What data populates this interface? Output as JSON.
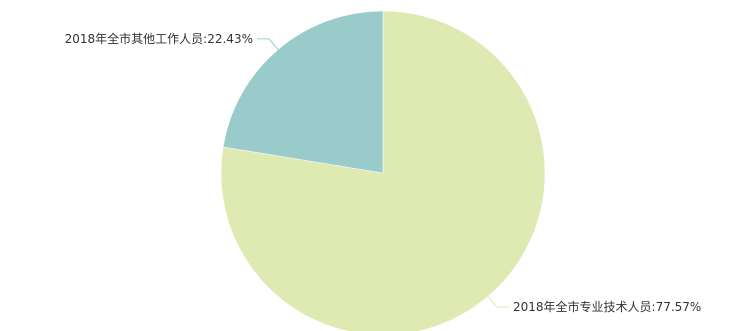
{
  "chart_data": {
    "type": "pie",
    "title": "",
    "start_angle": "top",
    "direction": "clockwise",
    "slices": [
      {
        "label": "2018年全市专业技术人员",
        "value": 77.57,
        "value_text": "77.57%",
        "color": "#dfeab2"
      },
      {
        "label": "2018年全市其他工作人员",
        "value": 22.43,
        "value_text": "22.43%",
        "color": "#9acbcb"
      }
    ],
    "label_separator": ":"
  }
}
